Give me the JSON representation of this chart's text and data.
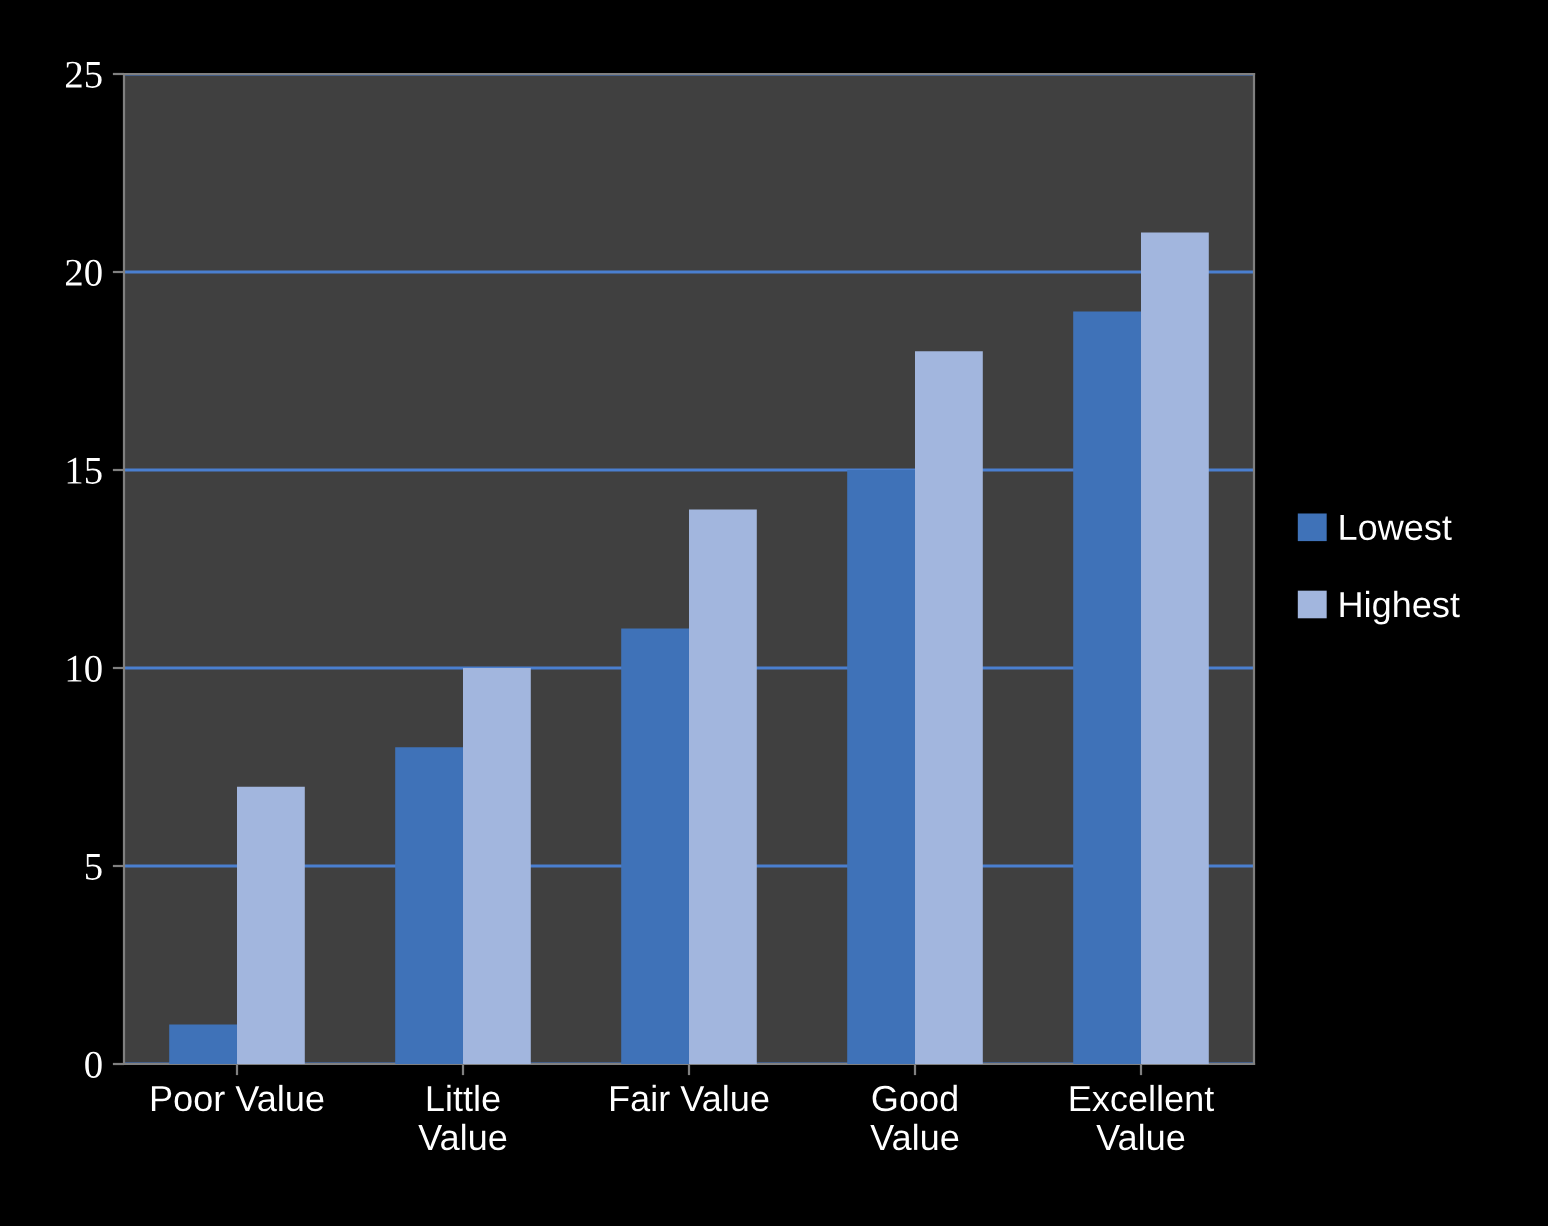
{
  "chart_data": {
    "type": "bar",
    "categories": [
      "Poor Value",
      "Little\nValue",
      "Fair Value",
      "Good\nValue",
      "Excellent\nValue"
    ],
    "series": [
      {
        "name": "Lowest",
        "color": "#3f72b8",
        "values": [
          1,
          8,
          11,
          15,
          19
        ]
      },
      {
        "name": "Highest",
        "color": "#a2b6de",
        "values": [
          7,
          10,
          14,
          18,
          21
        ]
      }
    ],
    "ylim": [
      0,
      25
    ],
    "yticks": [
      0,
      5,
      10,
      15,
      20,
      25
    ],
    "grid": "y",
    "legend": "right"
  }
}
